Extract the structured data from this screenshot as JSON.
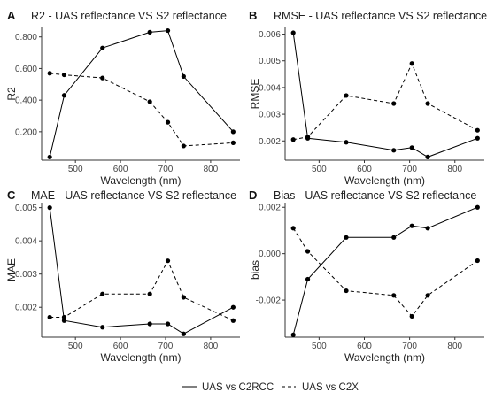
{
  "legend": {
    "items": [
      {
        "label": "UAS vs C2RCC",
        "dash": "solid"
      },
      {
        "label": "UAS vs C2X",
        "dash": "dashed"
      }
    ],
    "placement": "bottom"
  },
  "chart_data": [
    {
      "type": "line",
      "letter": "A",
      "title": "R2 - UAS reflectance VS S2 reflectance",
      "xlabel": "Wavelength (nm)",
      "ylabel": "R2",
      "xlim": [
        425,
        865
      ],
      "ylim": [
        0.02,
        0.86
      ],
      "xticks": [
        500,
        600,
        700,
        800
      ],
      "xticklabels": [
        "500",
        "600",
        "700",
        "800"
      ],
      "yticks": [
        0.2,
        0.4,
        0.6,
        0.8
      ],
      "yticklabels": [
        "0.200",
        "0.400",
        "0.600",
        "0.800"
      ],
      "grid": false,
      "series": [
        {
          "name": "UAS vs C2RCC",
          "dash": "solid",
          "x": [
            443,
            475,
            560,
            665,
            705,
            740,
            850
          ],
          "y": [
            0.04,
            0.43,
            0.73,
            0.83,
            0.84,
            0.55,
            0.2
          ]
        },
        {
          "name": "UAS vs C2X",
          "dash": "dashed",
          "x": [
            443,
            475,
            560,
            665,
            705,
            740,
            850
          ],
          "y": [
            0.57,
            0.56,
            0.54,
            0.39,
            0.26,
            0.11,
            0.13
          ]
        }
      ]
    },
    {
      "type": "line",
      "letter": "B",
      "title": "RMSE - UAS reflectance VS S2 reflectance",
      "xlabel": "Wavelength (nm)",
      "ylabel": "RMSE",
      "xlim": [
        425,
        865
      ],
      "ylim": [
        0.00128,
        0.00625
      ],
      "xticks": [
        500,
        600,
        700,
        800
      ],
      "xticklabels": [
        "500",
        "600",
        "700",
        "800"
      ],
      "yticks": [
        0.002,
        0.003,
        0.004,
        0.005,
        0.006
      ],
      "yticklabels": [
        "0.002",
        "0.003",
        "0.004",
        "0.005",
        "0.006"
      ],
      "grid": false,
      "series": [
        {
          "name": "UAS vs C2RCC",
          "dash": "solid",
          "x": [
            443,
            475,
            560,
            665,
            705,
            740,
            850
          ],
          "y": [
            0.00605,
            0.0021,
            0.00195,
            0.00165,
            0.00175,
            0.0014,
            0.0021
          ]
        },
        {
          "name": "UAS vs C2X",
          "dash": "dashed",
          "x": [
            443,
            475,
            560,
            665,
            705,
            740,
            850
          ],
          "y": [
            0.00205,
            0.00215,
            0.0037,
            0.0034,
            0.0049,
            0.0034,
            0.0024
          ]
        }
      ]
    },
    {
      "type": "line",
      "letter": "C",
      "title": "MAE - UAS reflectance VS S2 reflectance",
      "xlabel": "Wavelength (nm)",
      "ylabel": "MAE",
      "xlim": [
        425,
        865
      ],
      "ylim": [
        0.0011,
        0.00515
      ],
      "xticks": [
        500,
        600,
        700,
        800
      ],
      "xticklabels": [
        "500",
        "600",
        "700",
        "800"
      ],
      "yticks": [
        0.002,
        0.003,
        0.004,
        0.005
      ],
      "yticklabels": [
        "0.002",
        "0.003",
        "0.004",
        "0.005"
      ],
      "grid": false,
      "series": [
        {
          "name": "UAS vs C2RCC",
          "dash": "solid",
          "x": [
            443,
            475,
            560,
            665,
            705,
            740,
            850
          ],
          "y": [
            0.005,
            0.0016,
            0.0014,
            0.0015,
            0.0015,
            0.0012,
            0.002
          ]
        },
        {
          "name": "UAS vs C2X",
          "dash": "dashed",
          "x": [
            443,
            475,
            560,
            665,
            705,
            740,
            850
          ],
          "y": [
            0.0017,
            0.0017,
            0.0024,
            0.0024,
            0.0034,
            0.0023,
            0.0016
          ]
        }
      ]
    },
    {
      "type": "line",
      "letter": "D",
      "title": "Bias - UAS reflectance VS S2 reflectance",
      "xlabel": "Wavelength (nm)",
      "ylabel": "bias",
      "xlim": [
        425,
        865
      ],
      "ylim": [
        -0.0036,
        0.0022
      ],
      "xticks": [
        500,
        600,
        700,
        800
      ],
      "xticklabels": [
        "500",
        "600",
        "700",
        "800"
      ],
      "yticks": [
        -0.002,
        0.0,
        0.002
      ],
      "yticklabels": [
        "-0.002",
        "0.000",
        "0.002"
      ],
      "grid": false,
      "series": [
        {
          "name": "UAS vs C2RCC",
          "dash": "solid",
          "x": [
            443,
            475,
            560,
            665,
            705,
            740,
            850
          ],
          "y": [
            -0.0035,
            -0.0011,
            0.0007,
            0.0007,
            0.0012,
            0.0011,
            0.002
          ]
        },
        {
          "name": "UAS vs C2X",
          "dash": "dashed",
          "x": [
            443,
            475,
            560,
            665,
            705,
            740,
            850
          ],
          "y": [
            0.0011,
            0.0001,
            -0.0016,
            -0.0018,
            -0.0027,
            -0.0018,
            -0.0003
          ]
        }
      ]
    }
  ]
}
